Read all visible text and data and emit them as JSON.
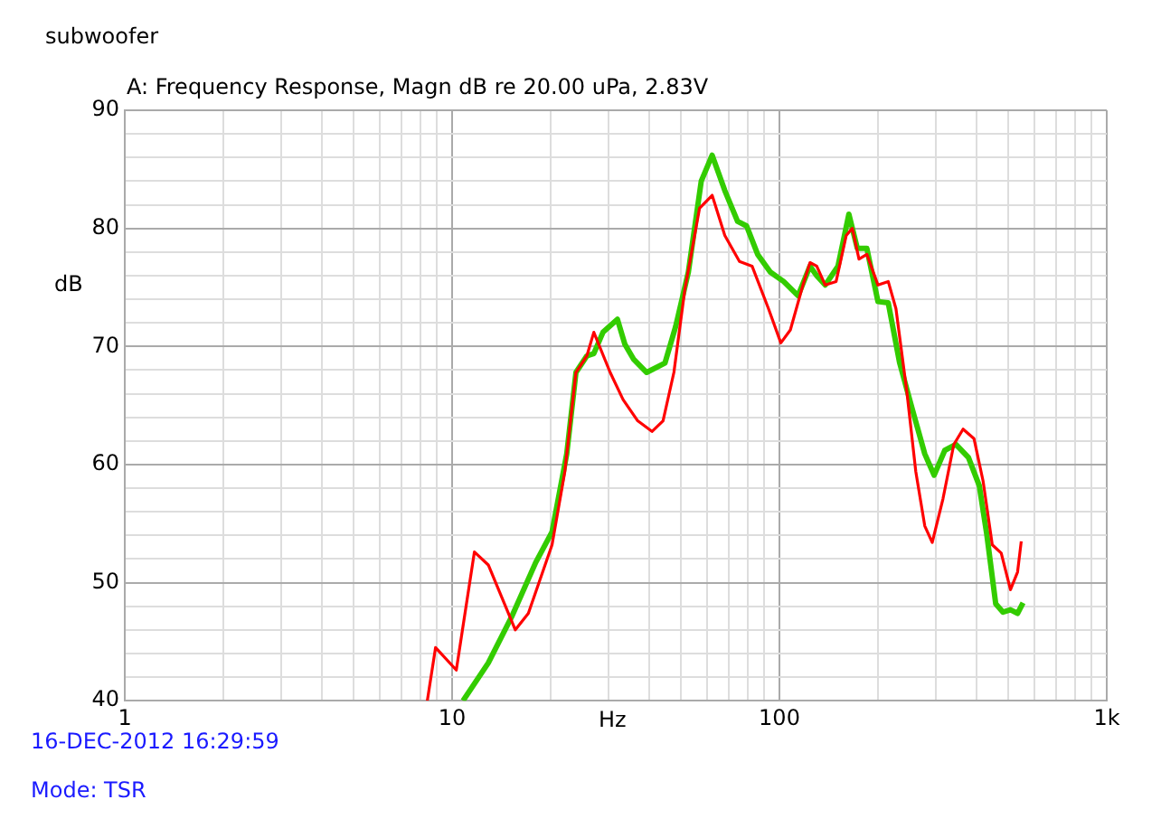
{
  "chart_data": {
    "type": "line",
    "title": "subwoofer",
    "subtitle": "A: Frequency Response, Magn dB re 20.00 uPa, 2.83V",
    "xlabel": "Hz",
    "ylabel": "dB",
    "annotations": [
      "16-DEC-2012 16:29:59",
      "Mode: TSR"
    ],
    "log": "x",
    "grid": true,
    "legend": false,
    "marker": "none",
    "line_style": "solid",
    "xlim": [
      1,
      1000
    ],
    "xticks": [
      1,
      {
        "value": 2,
        "label": null
      },
      {
        "value": 3,
        "label": null
      },
      {
        "value": 4,
        "label": null
      },
      {
        "value": 5,
        "label": null
      },
      {
        "value": 6,
        "label": null
      },
      {
        "value": 7,
        "label": null
      },
      {
        "value": 8,
        "label": null
      },
      {
        "value": 9,
        "label": null
      },
      10,
      {
        "value": 20,
        "label": null
      },
      {
        "value": 30,
        "label": null
      },
      {
        "value": 40,
        "label": null
      },
      {
        "value": 50,
        "label": null
      },
      {
        "value": 60,
        "label": null
      },
      {
        "value": 70,
        "label": null
      },
      {
        "value": 80,
        "label": null
      },
      {
        "value": 90,
        "label": null
      },
      100,
      {
        "value": 200,
        "label": null
      },
      {
        "value": 300,
        "label": null
      },
      {
        "value": 400,
        "label": null
      },
      {
        "value": 500,
        "label": null
      },
      {
        "value": 600,
        "label": null
      },
      {
        "value": 700,
        "label": null
      },
      {
        "value": 800,
        "label": null
      },
      {
        "value": 900,
        "label": null
      },
      {
        "value": 1000,
        "label": "1k"
      }
    ],
    "ylim": [
      40,
      90
    ],
    "yticks": [
      40,
      {
        "value": 42,
        "label": null
      },
      {
        "value": 44,
        "label": null
      },
      {
        "value": 46,
        "label": null
      },
      {
        "value": 48,
        "label": null
      },
      50,
      {
        "value": 52,
        "label": null
      },
      {
        "value": 54,
        "label": null
      },
      {
        "value": 56,
        "label": null
      },
      {
        "value": 58,
        "label": null
      },
      60,
      {
        "value": 62,
        "label": null
      },
      {
        "value": 64,
        "label": null
      },
      {
        "value": 66,
        "label": null
      },
      {
        "value": 68,
        "label": null
      },
      70,
      {
        "value": 72,
        "label": null
      },
      {
        "value": 74,
        "label": null
      },
      {
        "value": 76,
        "label": null
      },
      {
        "value": 78,
        "label": null
      },
      80,
      {
        "value": 82,
        "label": null
      },
      {
        "value": 84,
        "label": null
      },
      {
        "value": 86,
        "label": null
      },
      {
        "value": 88,
        "label": null
      },
      90
    ],
    "series": [
      {
        "color": "#ff0000",
        "x": [
          8.4,
          8.9,
          10.3,
          11.7,
          12.9,
          15.6,
          17.1,
          20.2,
          22.1,
          23.9,
          25.8,
          27.1,
          30.4,
          33.3,
          36.9,
          40.8,
          44.1,
          47.6,
          51.4,
          57,
          62.3,
          68.1,
          75.5,
          82.5,
          92.6,
          101,
          108,
          118,
          124,
          130,
          138,
          149,
          160,
          167,
          175,
          185,
          200,
          215,
          227,
          245,
          261,
          278,
          293,
          316,
          341,
          364,
          393,
          419,
          447,
          476,
          508,
          534,
          548
        ],
        "values": [
          40,
          44.5,
          42.6,
          52.6,
          51.5,
          46,
          47.4,
          53.2,
          59.4,
          67.8,
          69.2,
          71.2,
          67.8,
          65.5,
          63.7,
          62.8,
          63.7,
          67.8,
          74.8,
          81.7,
          82.8,
          79.4,
          77.2,
          76.8,
          73.2,
          70.3,
          71.4,
          75.2,
          77.1,
          76.8,
          75.2,
          75.5,
          79.4,
          80,
          77.4,
          77.8,
          75.2,
          75.5,
          73.2,
          66.2,
          59.4,
          54.8,
          53.4,
          57.1,
          61.7,
          63,
          62.2,
          58.6,
          53.2,
          52.5,
          49.4,
          50.9,
          53.5
        ]
      },
      {
        "color": "#33cc00",
        "x": [
          10.8,
          12.9,
          15.2,
          18,
          20.2,
          22.4,
          23.9,
          25.8,
          27.1,
          28.9,
          32,
          33.7,
          35.9,
          39.3,
          44.7,
          48.2,
          52.7,
          57.7,
          62.3,
          68.1,
          74.5,
          79.4,
          85.8,
          93.8,
          103,
          114,
          124,
          130,
          138,
          151,
          163,
          173,
          185,
          200,
          215,
          233,
          254,
          278,
          297,
          320,
          346,
          378,
          408,
          430,
          458,
          482,
          508,
          534,
          555
        ],
        "values": [
          40,
          43.2,
          47.1,
          51.7,
          54.3,
          60.9,
          67.8,
          69.2,
          69.4,
          71.2,
          72.3,
          70.2,
          68.9,
          67.8,
          68.6,
          71.7,
          76.3,
          84,
          86.2,
          83.2,
          80.6,
          80.2,
          77.8,
          76.3,
          75.5,
          74.3,
          76.8,
          76,
          75.2,
          76.8,
          81.2,
          78.3,
          78.3,
          73.8,
          73.7,
          68.6,
          64.8,
          60.9,
          59.1,
          61.2,
          61.7,
          60.6,
          58.2,
          54.1,
          48.2,
          47.5,
          47.7,
          47.4,
          48.3
        ]
      }
    ]
  }
}
